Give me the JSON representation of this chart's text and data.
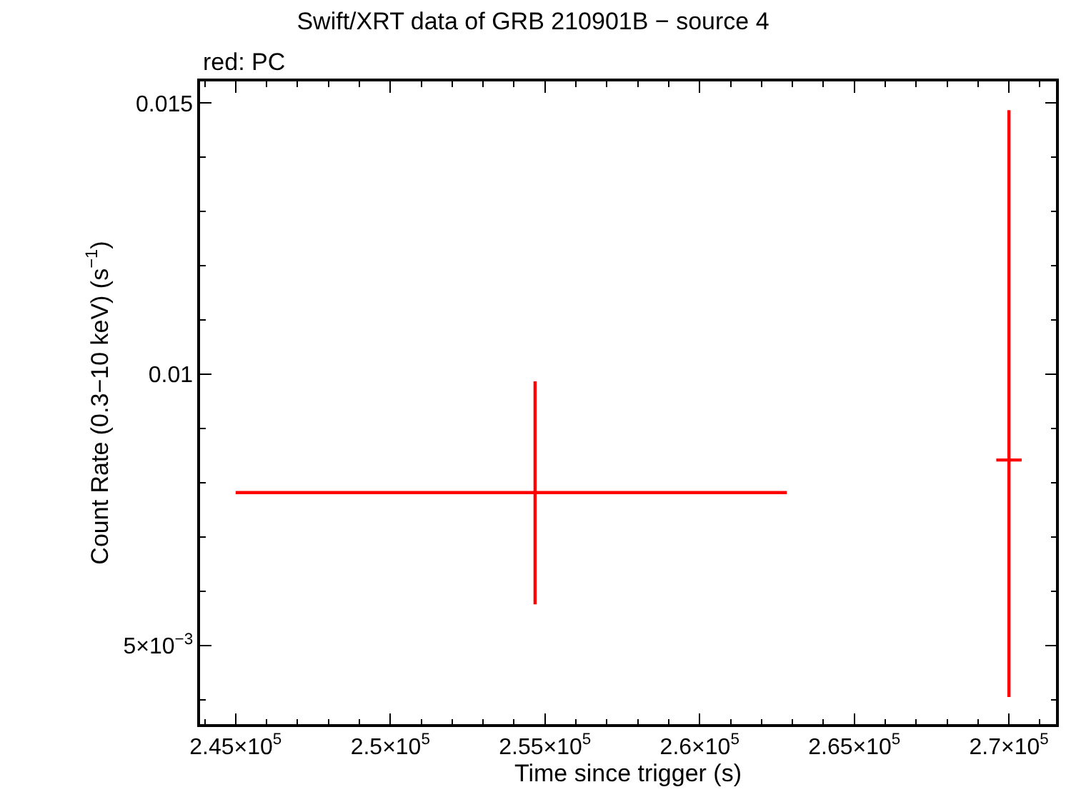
{
  "chart_data": {
    "type": "scatter",
    "title": "Swift/XRT data of GRB 210901B − source 4",
    "xlabel": "Time since trigger (s)",
    "ylabel": "Count Rate (0.3−10 keV) (s$^{−1}$)",
    "annotations": [
      "red: PC"
    ],
    "series": [
      {
        "color": "#ff0000",
        "x": [
          254680,
          270000
        ],
        "values": [
          0.00782,
          0.00842
        ],
        "xerrors": [
          [
            245000,
            262820
          ],
          [
            269590,
            270410
          ]
        ],
        "errors": [
          [
            0.00576,
            0.00987
          ],
          [
            0.00405,
            0.01487
          ]
        ]
      }
    ],
    "xlim": [
      243850,
      271520
    ],
    "xticks": [
      {
        "value": 245000,
        "label": "2.45×10$^{5}$"
      },
      {
        "value": 250000,
        "label": "2.5×10$^{5}$"
      },
      {
        "value": 255000,
        "label": "2.55×10$^{5}$"
      },
      {
        "value": 260000,
        "label": "2.6×10$^{5}$"
      },
      {
        "value": 265000,
        "label": "2.65×10$^{5}$"
      },
      {
        "value": 270000,
        "label": "2.7×10$^{5}$"
      }
    ],
    "ylim": [
      0.00355,
      0.0154
    ],
    "yticks": [
      {
        "value": 0.005,
        "label": "5×10$^{−3}$"
      },
      0.01,
      0.015
    ]
  }
}
